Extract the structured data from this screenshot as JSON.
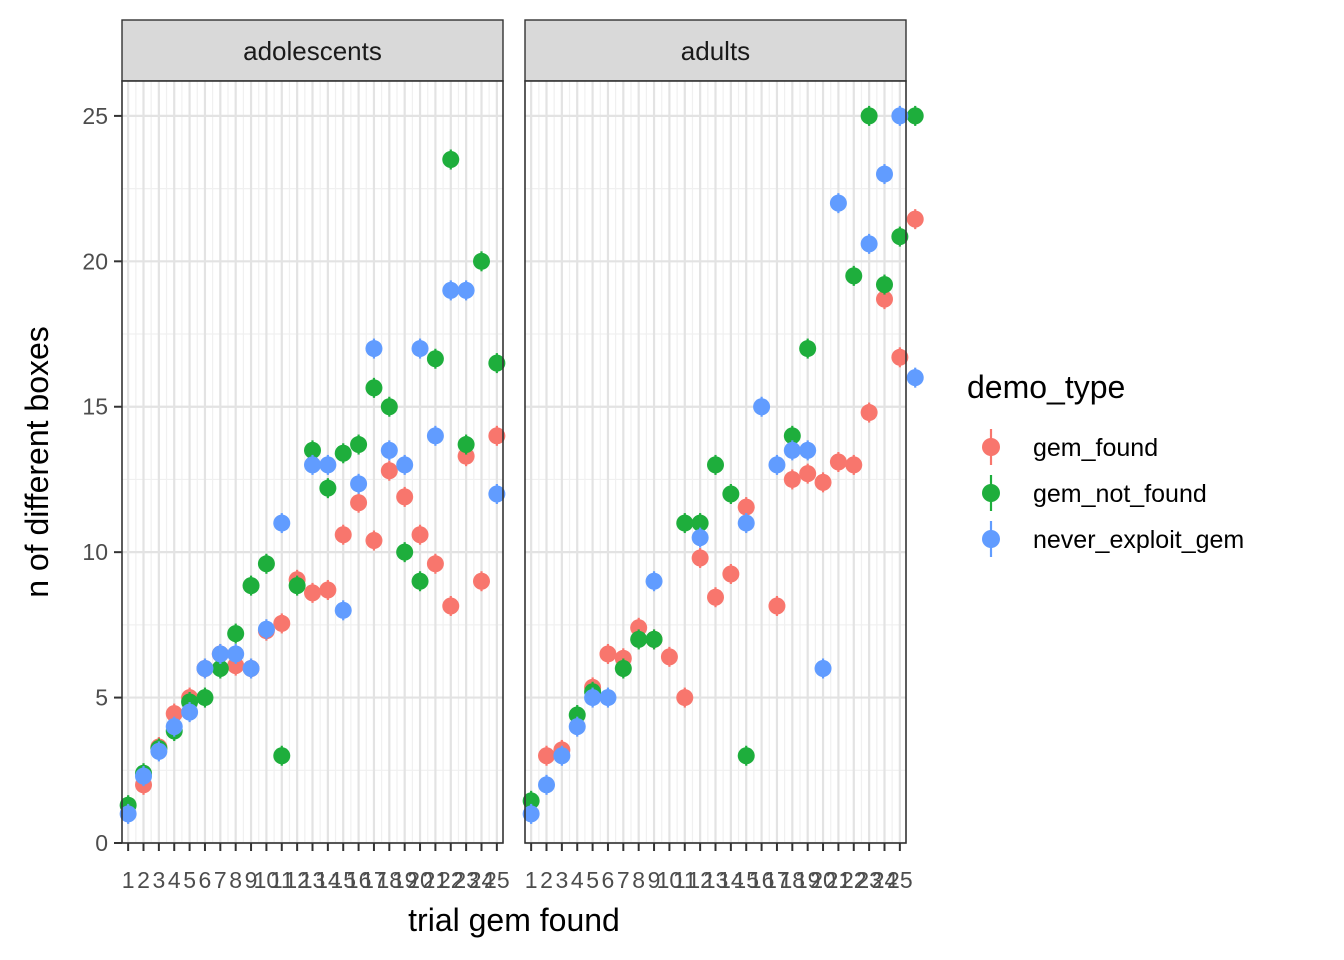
{
  "chart_data": {
    "type": "scatter",
    "xlabel": "trial gem found",
    "ylabel": "n of different boxes",
    "ylim": [
      0,
      26.2
    ],
    "xlim": [
      0.6,
      25.4
    ],
    "yticks": [
      0,
      5,
      10,
      15,
      20,
      25
    ],
    "xticks": [
      "1",
      "2",
      "3",
      "4",
      "5",
      "6",
      "7",
      "8",
      "9",
      "10",
      "11",
      "12",
      "13",
      "14",
      "15",
      "16",
      "17",
      "18",
      "19",
      "20",
      "21",
      "22",
      "23",
      "24",
      "25"
    ],
    "grid": true,
    "legend": {
      "title": "demo_type",
      "position": "right",
      "entries": [
        "gem_found",
        "gem_not_found",
        "never_exploit_gem"
      ]
    },
    "colors": {
      "gem_found": "#F8766D",
      "gem_not_found": "#1EAE3C",
      "never_exploit_gem": "#619CFF"
    },
    "facets": [
      {
        "label": "adolescents",
        "series": [
          {
            "name": "gem_found",
            "points": [
              [
                2,
                2.0
              ],
              [
                3,
                3.3
              ],
              [
                4,
                4.45
              ],
              [
                5,
                5.0
              ],
              [
                6,
                6.0
              ],
              [
                7,
                6.5
              ],
              [
                8,
                6.1
              ],
              [
                9,
                6.0
              ],
              [
                10,
                7.3
              ],
              [
                11,
                7.55
              ],
              [
                12,
                9.05
              ],
              [
                13,
                8.6
              ],
              [
                14,
                8.7
              ],
              [
                15,
                10.6
              ],
              [
                16,
                11.7
              ],
              [
                17,
                10.4
              ],
              [
                18,
                12.8
              ],
              [
                19,
                11.9
              ],
              [
                20,
                10.6
              ],
              [
                21,
                9.6
              ],
              [
                22,
                8.15
              ],
              [
                23,
                13.3
              ],
              [
                24,
                9.0
              ],
              [
                25,
                14.0
              ]
            ]
          },
          {
            "name": "gem_not_found",
            "points": [
              [
                1,
                1.3
              ],
              [
                2,
                2.4
              ],
              [
                3,
                3.25
              ],
              [
                4,
                3.85
              ],
              [
                5,
                4.85
              ],
              [
                6,
                5.0
              ],
              [
                7,
                6.0
              ],
              [
                8,
                7.2
              ],
              [
                9,
                8.85
              ],
              [
                10,
                9.6
              ],
              [
                11,
                3.0
              ],
              [
                12,
                8.85
              ],
              [
                13,
                13.5
              ],
              [
                14,
                12.2
              ],
              [
                15,
                13.4
              ],
              [
                16,
                13.7
              ],
              [
                17,
                15.65
              ],
              [
                18,
                15.0
              ],
              [
                19,
                10.0
              ],
              [
                20,
                9.0
              ],
              [
                21,
                16.65
              ],
              [
                22,
                23.5
              ],
              [
                23,
                13.7
              ],
              [
                24,
                20.0
              ],
              [
                25,
                16.5
              ]
            ]
          },
          {
            "name": "never_exploit_gem",
            "points": [
              [
                1,
                1.0
              ],
              [
                2,
                2.3
              ],
              [
                3,
                3.15
              ],
              [
                4,
                4.0
              ],
              [
                5,
                4.5
              ],
              [
                6,
                6.0
              ],
              [
                7,
                6.5
              ],
              [
                8,
                6.5
              ],
              [
                9,
                6.0
              ],
              [
                10,
                7.35
              ],
              [
                11,
                11.0
              ],
              [
                13,
                13.0
              ],
              [
                14,
                13.0
              ],
              [
                15,
                8.0
              ],
              [
                16,
                12.35
              ],
              [
                17,
                17.0
              ],
              [
                18,
                13.5
              ],
              [
                19,
                13.0
              ],
              [
                20,
                17.0
              ],
              [
                21,
                14.0
              ],
              [
                22,
                19.0
              ],
              [
                23,
                19.0
              ],
              [
                25,
                12.0
              ]
            ]
          }
        ]
      },
      {
        "label": "adults",
        "series": [
          {
            "name": "gem_found",
            "points": [
              [
                2,
                3.0
              ],
              [
                3,
                3.2
              ],
              [
                5,
                5.35
              ],
              [
                6,
                6.5
              ],
              [
                7,
                6.35
              ],
              [
                8,
                7.4
              ],
              [
                9,
                7.0
              ],
              [
                10,
                6.4
              ],
              [
                11,
                5.0
              ],
              [
                12,
                9.8
              ],
              [
                13,
                8.45
              ],
              [
                14,
                9.25
              ],
              [
                15,
                11.55
              ],
              [
                17,
                8.15
              ],
              [
                18,
                12.5
              ],
              [
                19,
                12.7
              ],
              [
                20,
                12.4
              ],
              [
                21,
                13.1
              ],
              [
                22,
                13.0
              ],
              [
                23,
                14.8
              ],
              [
                24,
                18.7
              ],
              [
                25,
                16.7
              ],
              [
                26,
                21.45
              ]
            ]
          },
          {
            "name": "gem_not_found",
            "points": [
              [
                1,
                1.45
              ],
              [
                4,
                4.4
              ],
              [
                5,
                5.2
              ],
              [
                7,
                6.0
              ],
              [
                8,
                7.0
              ],
              [
                9,
                7.0
              ],
              [
                11,
                11.0
              ],
              [
                12,
                11.0
              ],
              [
                13,
                13.0
              ],
              [
                14,
                12.0
              ],
              [
                15,
                3.0
              ],
              [
                18,
                14.0
              ],
              [
                19,
                17.0
              ],
              [
                22,
                19.5
              ],
              [
                23,
                25.0
              ],
              [
                24,
                19.2
              ],
              [
                25,
                20.85
              ],
              [
                26,
                25.0
              ]
            ]
          },
          {
            "name": "never_exploit_gem",
            "points": [
              [
                1,
                1.0
              ],
              [
                2,
                2.0
              ],
              [
                3,
                3.0
              ],
              [
                4,
                4.0
              ],
              [
                5,
                5.0
              ],
              [
                6,
                5.0
              ],
              [
                9,
                9.0
              ],
              [
                12,
                10.5
              ],
              [
                15,
                11.0
              ],
              [
                16,
                15.0
              ],
              [
                17,
                13.0
              ],
              [
                18,
                13.5
              ],
              [
                19,
                13.5
              ],
              [
                20,
                6.0
              ],
              [
                21,
                22.0
              ],
              [
                23,
                20.6
              ],
              [
                24,
                23.0
              ],
              [
                25,
                25.0
              ],
              [
                26,
                16.0
              ]
            ]
          }
        ]
      }
    ]
  }
}
